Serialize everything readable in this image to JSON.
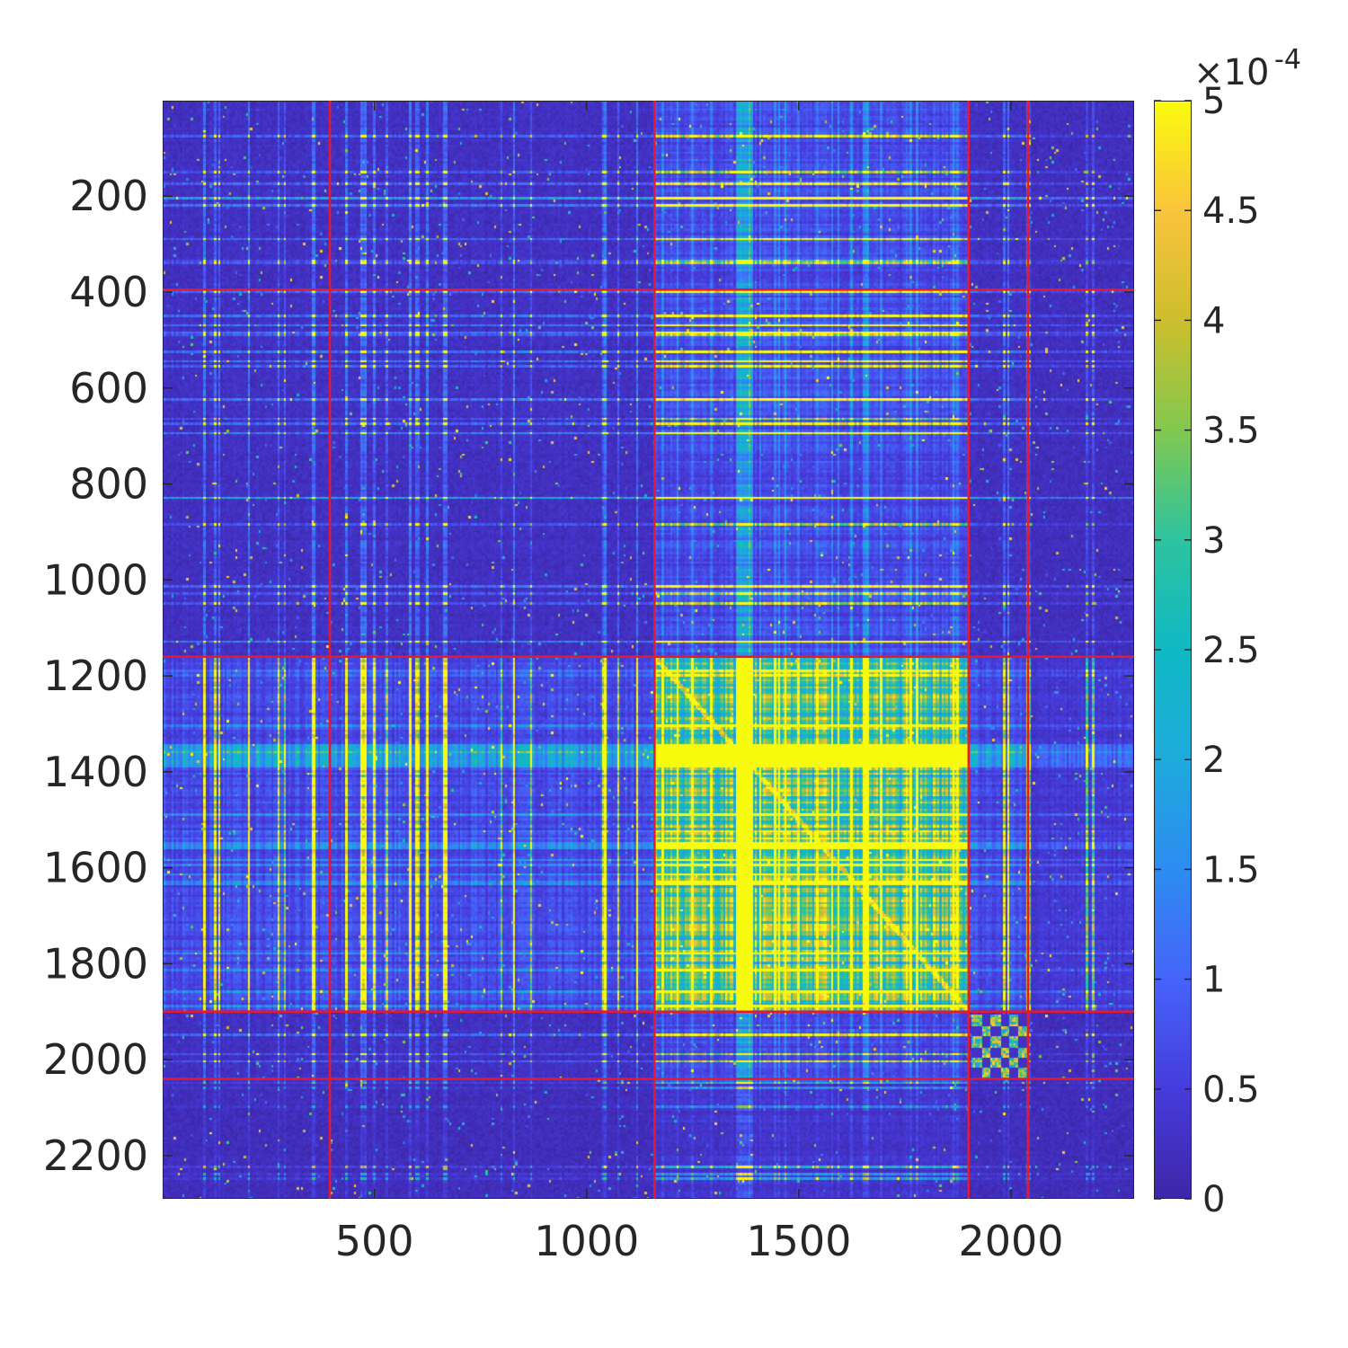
{
  "chart_data": {
    "type": "heatmap",
    "title": "",
    "xlabel": "",
    "ylabel": "",
    "matrix_size": 2290,
    "xlim": [
      1,
      2290
    ],
    "ylim": [
      1,
      2290
    ],
    "y_reversed": true,
    "x_ticks": [
      {
        "value": 500,
        "label": "500"
      },
      {
        "value": 1000,
        "label": "1000"
      },
      {
        "value": 1500,
        "label": "1500"
      },
      {
        "value": 2000,
        "label": "2000"
      }
    ],
    "y_ticks": [
      {
        "value": 200,
        "label": "200"
      },
      {
        "value": 400,
        "label": "400"
      },
      {
        "value": 600,
        "label": "600"
      },
      {
        "value": 800,
        "label": "800"
      },
      {
        "value": 1000,
        "label": "1000"
      },
      {
        "value": 1200,
        "label": "1200"
      },
      {
        "value": 1400,
        "label": "1400"
      },
      {
        "value": 1600,
        "label": "1600"
      },
      {
        "value": 1800,
        "label": "1800"
      },
      {
        "value": 2000,
        "label": "2000"
      },
      {
        "value": 2200,
        "label": "2200"
      }
    ],
    "colorbar": {
      "clim": [
        0,
        5
      ],
      "scale_exponent_base": "×10",
      "scale_exponent": "-4",
      "colormap": "parula",
      "ticks": [
        {
          "value": 0,
          "label": "0"
        },
        {
          "value": 0.5,
          "label": "0.5"
        },
        {
          "value": 1,
          "label": "1"
        },
        {
          "value": 1.5,
          "label": "1.5"
        },
        {
          "value": 2,
          "label": "2"
        },
        {
          "value": 2.5,
          "label": "2.5"
        },
        {
          "value": 3,
          "label": "3"
        },
        {
          "value": 3.5,
          "label": "3.5"
        },
        {
          "value": 4,
          "label": "4"
        },
        {
          "value": 4.5,
          "label": "4.5"
        },
        {
          "value": 5,
          "label": "5"
        }
      ]
    },
    "block_boundaries": [
      395,
      1160,
      1900,
      2040
    ],
    "boundary_color": "#e8192c",
    "description_of_structure": {
      "dense_column_bands": [
        [
          1160,
          1900
        ]
      ],
      "dense_row_bands": [
        [
          1160,
          1900
        ]
      ],
      "strong_row_band": [
        1340,
        1385
      ],
      "strong_column_band": [
        1350,
        1385
      ],
      "diagonal_blocks": [
        [
          1905,
          2040
        ]
      ]
    }
  },
  "colors": {
    "low": "#3e26a8",
    "mid": "#16b5c7",
    "high": "#f9fb0e",
    "axis": "#262626"
  }
}
